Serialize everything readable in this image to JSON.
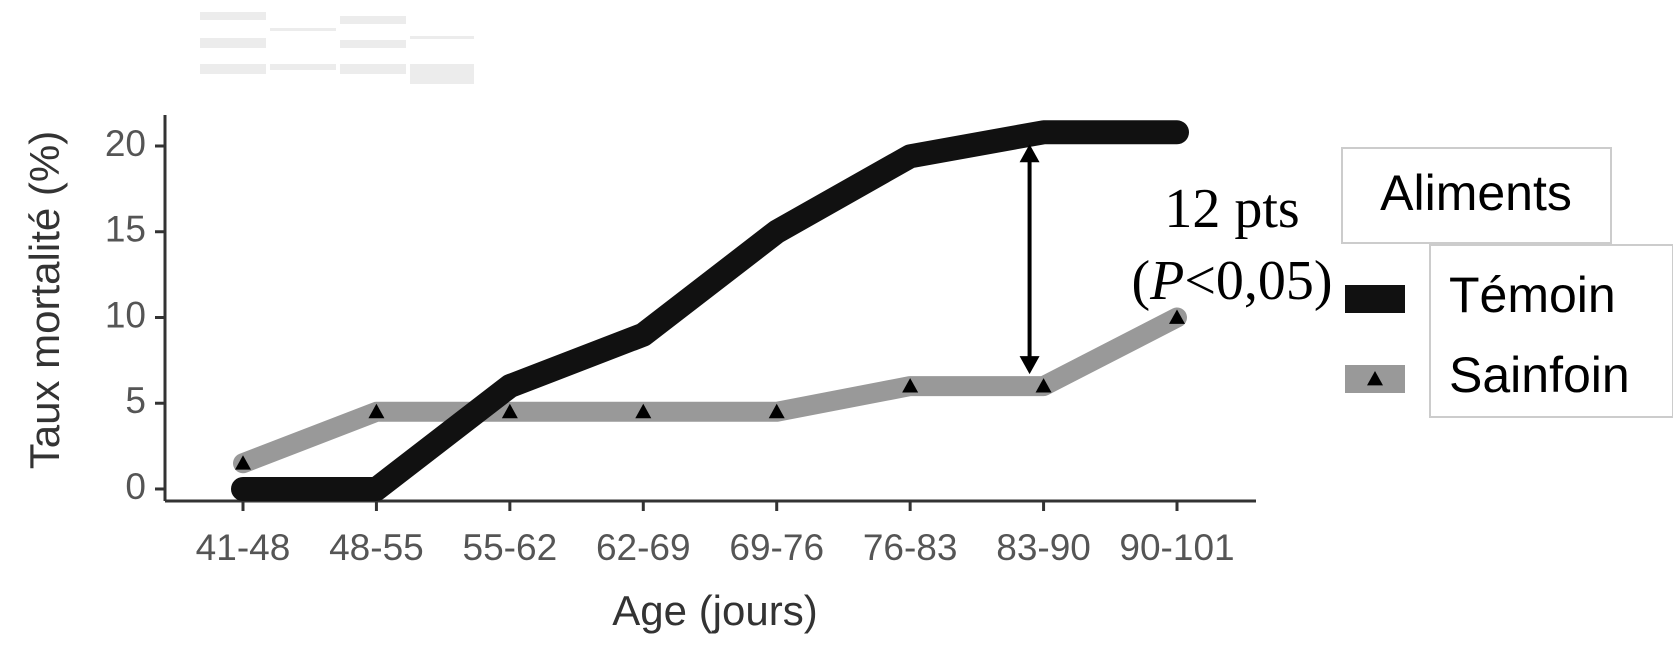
{
  "chart_data": {
    "type": "line",
    "x_label": "Age (jours)",
    "y_label": "Taux mortalité (%)",
    "categories": [
      "41-48",
      "48-55",
      "55-62",
      "62-69",
      "69-76",
      "76-83",
      "83-90",
      "90-101"
    ],
    "series": [
      {
        "name": "Témoin",
        "color": "#111111",
        "values": [
          0,
          0,
          6,
          9,
          15,
          19.4,
          20.8,
          20.8
        ]
      },
      {
        "name": "Sainfoin",
        "color": "#999999",
        "values": [
          1.5,
          4.5,
          4.5,
          4.5,
          4.5,
          6,
          6,
          10
        ]
      }
    ],
    "ylim": [
      -0.8,
      22
    ],
    "yticks": [
      0,
      5,
      10,
      15,
      20
    ],
    "legend_title": "Aliments",
    "legend": "right",
    "annotation": {
      "line1": "12 pts",
      "line2": [
        "(",
        "P",
        "<0,05)"
      ]
    }
  }
}
